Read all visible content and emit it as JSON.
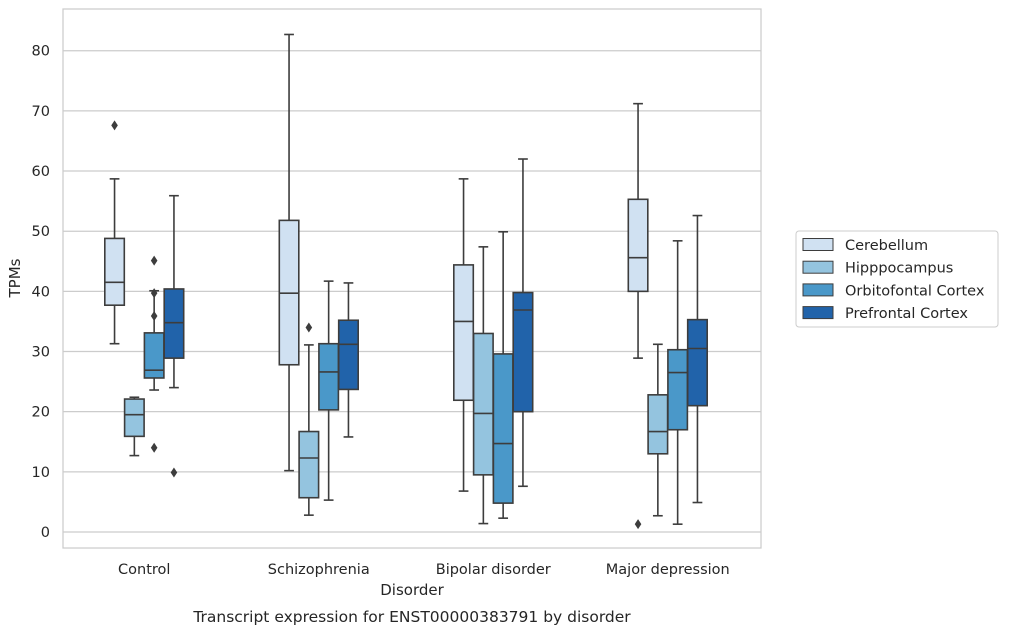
{
  "chart_data": {
    "type": "box",
    "caption": "Transcript expression for ENST00000383791 by disorder",
    "xlabel": "Disorder",
    "ylabel": "TPMs",
    "ylim": [
      -2.5,
      87
    ],
    "yticks": [
      0,
      10,
      20,
      30,
      40,
      50,
      60,
      70,
      80
    ],
    "grid": "horizontal",
    "legend_position": "right",
    "categories": [
      "Control",
      "Schizophrenia",
      "Bipolar disorder",
      "Major depression"
    ],
    "series": [
      {
        "name": "Cerebellum",
        "color": "#d0e1f2",
        "boxes": [
          {
            "whislo": 31.3,
            "q1": 37.7,
            "med": 41.5,
            "q3": 48.8,
            "whishi": 58.7,
            "fliers": [
              67.6
            ]
          },
          {
            "whislo": 10.2,
            "q1": 27.8,
            "med": 39.7,
            "q3": 51.8,
            "whishi": 82.7,
            "fliers": []
          },
          {
            "whislo": 6.8,
            "q1": 21.9,
            "med": 35.0,
            "q3": 44.4,
            "whishi": 58.7,
            "fliers": []
          },
          {
            "whislo": 28.9,
            "q1": 40.0,
            "med": 45.6,
            "q3": 55.3,
            "whishi": 71.2,
            "fliers": [
              1.3
            ]
          }
        ]
      },
      {
        "name": "Hipppocampus",
        "color": "#94c4df",
        "boxes": [
          {
            "whislo": 12.7,
            "q1": 15.9,
            "med": 19.5,
            "q3": 22.1,
            "whishi": 22.4,
            "fliers": []
          },
          {
            "whislo": 2.8,
            "q1": 5.7,
            "med": 12.3,
            "q3": 16.7,
            "whishi": 31.1,
            "fliers": [
              34.0
            ]
          },
          {
            "whislo": 1.4,
            "q1": 9.5,
            "med": 19.7,
            "q3": 33.0,
            "whishi": 47.4,
            "fliers": []
          },
          {
            "whislo": 2.7,
            "q1": 13.0,
            "med": 16.7,
            "q3": 22.8,
            "whishi": 31.2,
            "fliers": []
          }
        ]
      },
      {
        "name": "Orbitofontal Cortex",
        "color": "#4a98c9",
        "boxes": [
          {
            "whislo": 23.6,
            "q1": 25.6,
            "med": 26.9,
            "q3": 33.1,
            "whishi": 40.1,
            "fliers": [
              45.1,
              39.7,
              35.9,
              14.0
            ]
          },
          {
            "whislo": 5.3,
            "q1": 20.3,
            "med": 26.6,
            "q3": 31.3,
            "whishi": 41.7,
            "fliers": []
          },
          {
            "whislo": 2.3,
            "q1": 4.8,
            "med": 14.7,
            "q3": 29.6,
            "whishi": 49.9,
            "fliers": []
          },
          {
            "whislo": 1.3,
            "q1": 17.0,
            "med": 26.5,
            "q3": 30.3,
            "whishi": 48.4,
            "fliers": []
          }
        ]
      },
      {
        "name": "Prefrontal Cortex",
        "color": "#2163aa",
        "boxes": [
          {
            "whislo": 24.0,
            "q1": 28.9,
            "med": 34.8,
            "q3": 40.4,
            "whishi": 55.9,
            "fliers": [
              9.9
            ]
          },
          {
            "whislo": 15.8,
            "q1": 23.7,
            "med": 31.2,
            "q3": 35.2,
            "whishi": 41.4,
            "fliers": []
          },
          {
            "whislo": 7.6,
            "q1": 20.0,
            "med": 36.9,
            "q3": 39.8,
            "whishi": 62.0,
            "fliers": []
          },
          {
            "whislo": 4.9,
            "q1": 21.0,
            "med": 30.5,
            "q3": 35.3,
            "whishi": 52.6,
            "fliers": []
          }
        ]
      }
    ]
  }
}
